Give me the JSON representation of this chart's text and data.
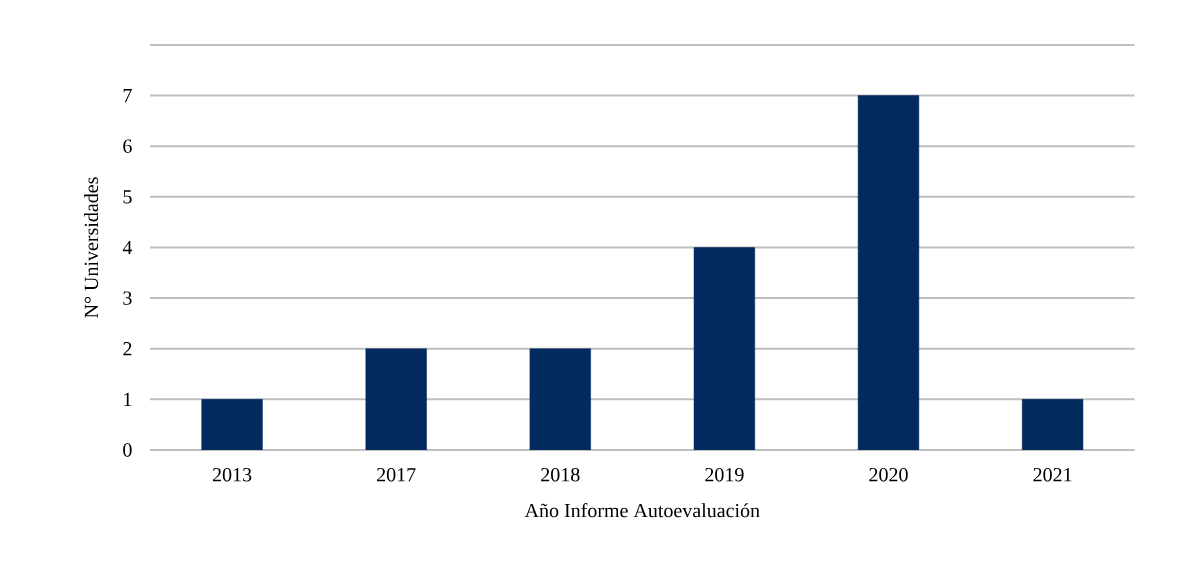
{
  "chart_data": {
    "type": "bar",
    "xlabel": "Año Informe Autoevaluación",
    "ylabel": "N° Universidades",
    "categories": [
      "2013",
      "2017",
      "2018",
      "2019",
      "2020",
      "2021"
    ],
    "values": [
      1,
      2,
      2,
      4,
      7,
      1
    ],
    "color": "#022a5e",
    "ylim": [
      0,
      8
    ],
    "yticks": [
      0,
      1,
      2,
      3,
      4,
      5,
      6,
      7,
      {
        "value": 8,
        "label": null
      }
    ],
    "grid": "y"
  }
}
